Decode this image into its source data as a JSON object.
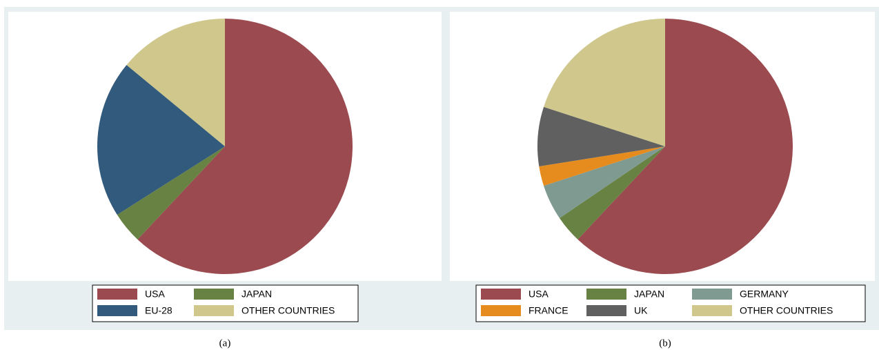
{
  "chart_data": [
    {
      "type": "pie",
      "caption": "(a)",
      "categories": [
        "USA",
        "JAPAN",
        "EU-28",
        "OTHER COUNTRIES"
      ],
      "values": [
        62,
        4,
        20,
        14
      ],
      "colors": [
        "#9b4a50",
        "#678242",
        "#325a7c",
        "#cfc78c"
      ]
    },
    {
      "type": "pie",
      "caption": "(b)",
      "categories": [
        "USA",
        "JAPAN",
        "GERMANY",
        "FRANCE",
        "UK",
        "OTHER COUNTRIES"
      ],
      "values": [
        62,
        3.5,
        4.5,
        2.5,
        7.5,
        20
      ],
      "colors": [
        "#9b4a50",
        "#678242",
        "#7f9a90",
        "#e68c1e",
        "#606060",
        "#cfc78c"
      ]
    }
  ]
}
